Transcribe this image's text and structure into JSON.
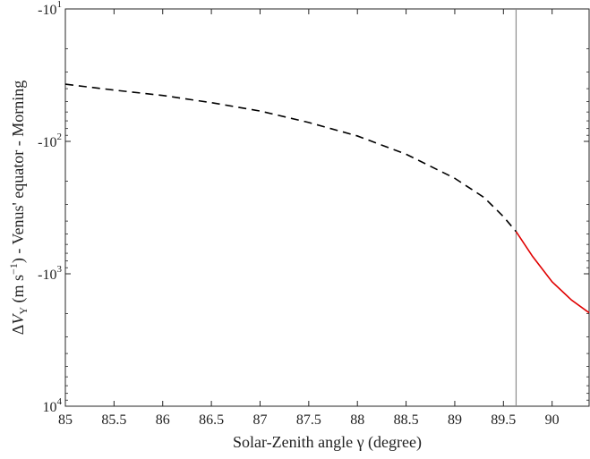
{
  "chart_data": {
    "type": "line",
    "xlabel": "Solar-Zenith angle γ (degree)",
    "ylabel_parts": {
      "delta": "Δ",
      "var": "V",
      "sub": "Y",
      "units_pre": " (m s",
      "units_exp": "−1",
      "units_post": ") - Venus' equator - Morning"
    },
    "xlim": [
      85,
      90.38
    ],
    "x_ticks": [
      85,
      85.5,
      86,
      86.5,
      87,
      87.5,
      88,
      88.5,
      89,
      89.5,
      90
    ],
    "x_tick_labels": [
      "85",
      "85.5",
      "86",
      "86.5",
      "87",
      "87.5",
      "88",
      "88.5",
      "89",
      "89.5",
      "90"
    ],
    "yscale": "log",
    "ylim_magnitude": [
      10,
      10000
    ],
    "y_ticks": [
      10,
      100,
      1000,
      10000
    ],
    "y_tick_labels": [
      {
        "base": "-10",
        "exp": "1"
      },
      {
        "base": "-10",
        "exp": "2"
      },
      {
        "base": "-10",
        "exp": "3"
      },
      {
        "base": "10",
        "exp": "4"
      }
    ],
    "vline_x": 89.63,
    "series": [
      {
        "style": "dashed",
        "color": "#000000",
        "x": [
          85.0,
          85.5,
          86.0,
          86.5,
          87.0,
          87.5,
          88.0,
          88.5,
          89.0,
          89.3,
          89.5,
          89.63
        ],
        "y_magnitude": [
          37,
          41,
          45,
          51,
          59,
          72,
          91,
          125,
          190,
          265,
          370,
          480
        ]
      },
      {
        "style": "solid",
        "color": "#e00000",
        "x": [
          89.63,
          89.8,
          90.0,
          90.2,
          90.38
        ],
        "y_magnitude": [
          480,
          740,
          1150,
          1580,
          1970
        ]
      }
    ],
    "grid": false,
    "legend": "none"
  }
}
